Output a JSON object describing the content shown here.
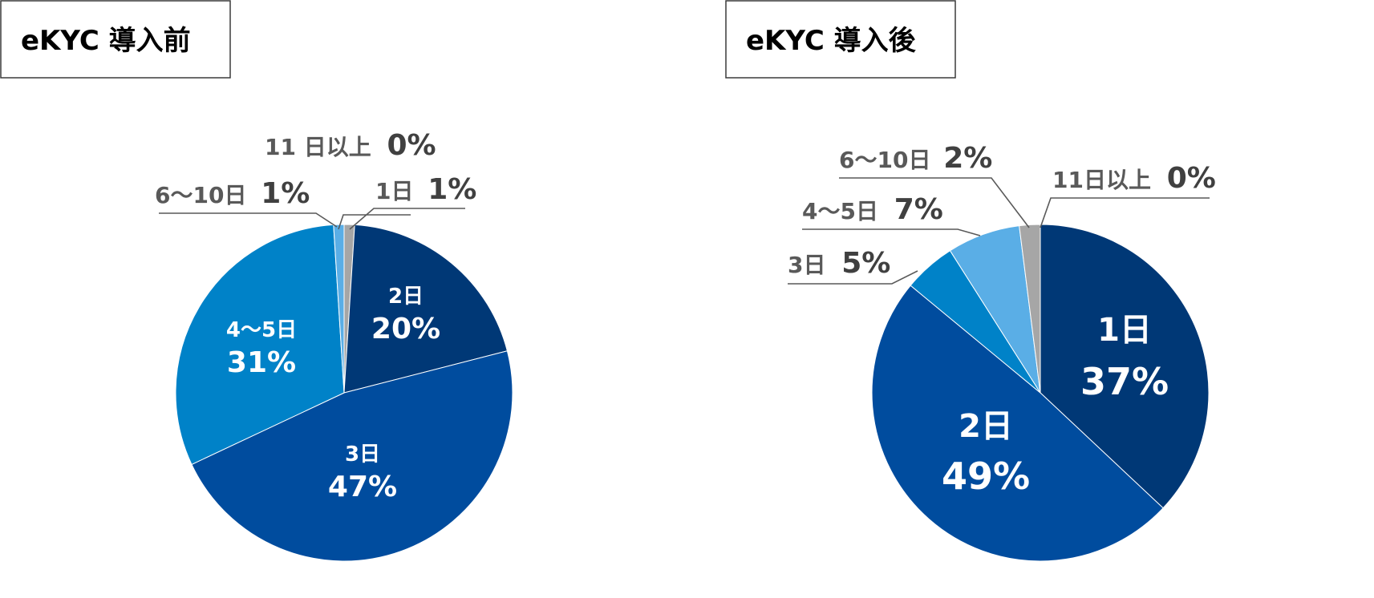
{
  "chart_data": [
    {
      "type": "pie",
      "title": "eKYC 導入前",
      "categories": [
        "1日",
        "2日",
        "3日",
        "4～5日",
        "6～10日",
        "11 日以上"
      ],
      "values": [
        1,
        20,
        47,
        31,
        1,
        0
      ],
      "labels": [
        {
          "name": "1日",
          "value": "1%"
        },
        {
          "name": "2日",
          "value": "20%"
        },
        {
          "name": "3日",
          "value": "47%"
        },
        {
          "name": "4～5日",
          "value": "31%"
        },
        {
          "name": "6～10日",
          "value": "1%"
        },
        {
          "name": "11 日以上",
          "value": "0%"
        }
      ],
      "colors": [
        "#a6a6a6",
        "#003876",
        "#004c9e",
        "#0082c8",
        "#5aaee6",
        "#a6a6a6"
      ]
    },
    {
      "type": "pie",
      "title": "eKYC 導入後",
      "categories": [
        "1日",
        "2日",
        "3日",
        "4～5日",
        "6～10日",
        "11日以上"
      ],
      "values": [
        37,
        49,
        5,
        7,
        2,
        0
      ],
      "labels": [
        {
          "name": "1日",
          "value": "37%"
        },
        {
          "name": "2日",
          "value": "49%"
        },
        {
          "name": "3日",
          "value": "5%"
        },
        {
          "name": "4～5日",
          "value": "7%"
        },
        {
          "name": "6～10日",
          "value": "2%"
        },
        {
          "name": "11日以上",
          "value": "0%"
        }
      ],
      "colors": [
        "#003876",
        "#004c9e",
        "#0082c8",
        "#5aaee6",
        "#a6a6a6",
        "#a6a6a6"
      ]
    }
  ]
}
